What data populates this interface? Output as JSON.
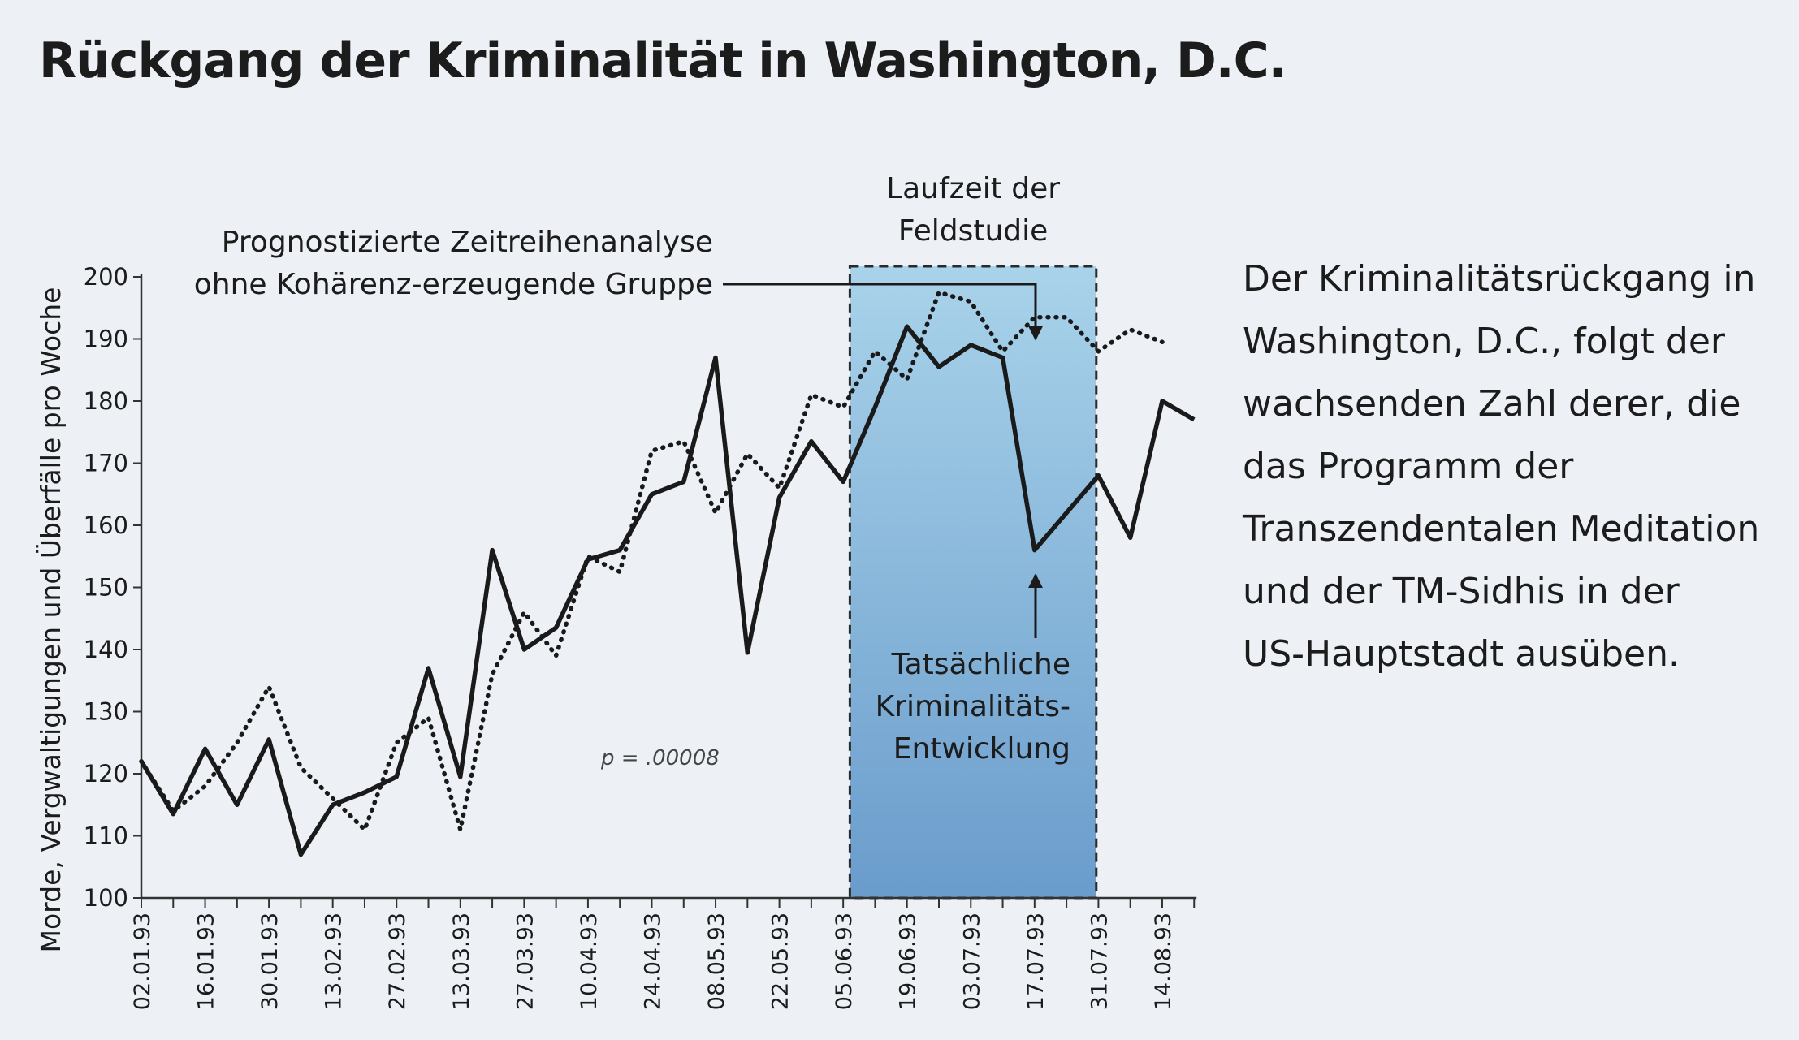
{
  "title": "Rückgang der Kriminalität in Washington, D.C.",
  "side_text": [
    "Der Kriminalitätsrückgang in",
    "Washington, D.C., folgt der",
    "wachsenden Zahl derer, die",
    "das Programm der",
    "Transzendentalen Meditation",
    "und der TM-Sidhis in der",
    "US-Hauptstadt ausüben."
  ],
  "annotations": {
    "field_study": [
      "Laufzeit der",
      "Feldstudie"
    ],
    "predicted": [
      "Prognostizierte Zeitreihenanalyse",
      "ohne Kohärenz-erzeugende Gruppe"
    ],
    "actual": [
      "Tatsächliche",
      "Kriminalitäts-",
      "Entwicklung"
    ],
    "p_value": "p = .00008"
  },
  "colors": {
    "background": "#edf1f6",
    "field_study_top": "#a9d3ea",
    "field_study_bottom": "#6a9ccc",
    "line": "#1a1a1a"
  },
  "chart_data": {
    "type": "line",
    "ylabel": "Morde, Vergwaltigungen und Überfälle pro Woche",
    "xlabel": "",
    "ylim": [
      100,
      200
    ],
    "yticks": [
      100,
      110,
      120,
      130,
      140,
      150,
      160,
      170,
      180,
      190,
      200
    ],
    "x_tick_labels": [
      "02.01.93",
      "16.01.93",
      "30.01.93",
      "13.02.93",
      "27.02.93",
      "13.03.93",
      "27.03.93",
      "10.04.93",
      "24.04.93",
      "08.05.93",
      "22.05.93",
      "05.06.93",
      "19.06.93",
      "03.07.93",
      "17.07.93",
      "31.07.93",
      "14.08.93"
    ],
    "field_study_weeks": [
      "07.06.93",
      "30.07.93"
    ],
    "series": [
      {
        "id": "actual",
        "style": "solid",
        "weekly_values": [
          122,
          113.5,
          124,
          115,
          125.5,
          107,
          115,
          117,
          119.5,
          137,
          119.5,
          156,
          140,
          143.5,
          154.5,
          156,
          165,
          167,
          187,
          139.5,
          164.5,
          173.5,
          167,
          179,
          192,
          185.5,
          189,
          187,
          156,
          162,
          168,
          158,
          180,
          177
        ]
      },
      {
        "id": "predicted",
        "style": "dotted",
        "weekly_values": [
          122,
          114,
          118,
          125,
          134,
          121,
          116,
          111,
          125,
          129,
          111,
          136,
          146,
          139,
          155,
          152.5,
          172,
          173.5,
          162,
          171.5,
          166,
          181,
          179,
          188,
          183.5,
          197.5,
          196,
          188,
          193.5,
          193.5,
          188,
          191.5,
          189.5
        ]
      }
    ]
  }
}
